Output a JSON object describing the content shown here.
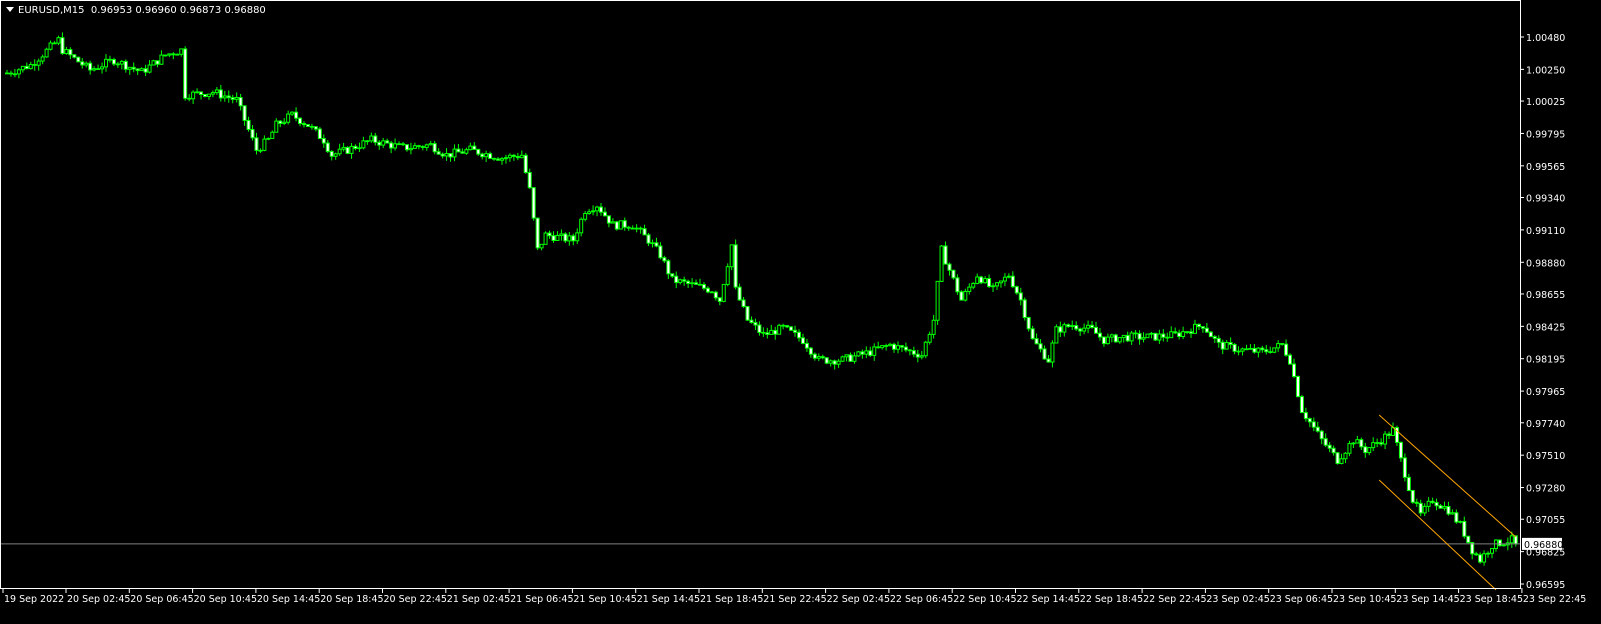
{
  "header": {
    "symbol": "EURUSD,M15",
    "ohlc": "0.96953 0.96960 0.96873 0.96880"
  },
  "colors": {
    "background": "#000000",
    "candle_outline": "#00ff00",
    "bear_body": "#ffffff",
    "bull_body": "#000000",
    "channel": "#ffa500",
    "price_line": "#808080",
    "axis": "#ffffff"
  },
  "chart_data": {
    "type": "candlestick",
    "timeframe": "M15",
    "ylim": [
      0.96595,
      1.0048
    ],
    "y_ticks": [
      "1.00480",
      "1.00250",
      "1.00025",
      "0.99795",
      "0.99565",
      "0.99340",
      "0.99110",
      "0.98880",
      "0.98655",
      "0.98425",
      "0.98195",
      "0.97965",
      "0.97740",
      "0.97510",
      "0.97280",
      "0.97055",
      "0.96825",
      "0.96595"
    ],
    "x_ticks": [
      "19 Sep 2022",
      "20 Sep 02:45",
      "20 Sep 06:45",
      "20 Sep 10:45",
      "20 Sep 14:45",
      "20 Sep 18:45",
      "20 Sep 22:45",
      "21 Sep 02:45",
      "21 Sep 06:45",
      "21 Sep 10:45",
      "21 Sep 14:45",
      "21 Sep 18:45",
      "21 Sep 22:45",
      "22 Sep 02:45",
      "22 Sep 06:45",
      "22 Sep 10:45",
      "22 Sep 14:45",
      "22 Sep 18:45",
      "22 Sep 22:45",
      "23 Sep 02:45",
      "23 Sep 06:45",
      "23 Sep 10:45",
      "23 Sep 14:45",
      "23 Sep 18:45",
      "23 Sep 22:45"
    ],
    "bars_count": 382,
    "close_path": [
      [
        0,
        1.00224
      ],
      [
        6,
        1.00281
      ],
      [
        13,
        1.00459
      ],
      [
        14,
        1.00388
      ],
      [
        21,
        1.00246
      ],
      [
        27,
        1.00317
      ],
      [
        34,
        1.00231
      ],
      [
        40,
        1.00352
      ],
      [
        44,
        1.00388
      ],
      [
        45,
        1.00068
      ],
      [
        52,
        1.00089
      ],
      [
        58,
        1.00033
      ],
      [
        61,
        0.9982
      ],
      [
        63,
        0.99678
      ],
      [
        66,
        0.99749
      ],
      [
        68,
        0.99855
      ],
      [
        72,
        0.99926
      ],
      [
        76,
        0.99855
      ],
      [
        80,
        0.99749
      ],
      [
        82,
        0.99642
      ],
      [
        86,
        0.99678
      ],
      [
        92,
        0.99749
      ],
      [
        100,
        0.99692
      ],
      [
        107,
        0.99713
      ],
      [
        111,
        0.99642
      ],
      [
        117,
        0.99678
      ],
      [
        125,
        0.99621
      ],
      [
        130,
        0.99642
      ],
      [
        132,
        0.99393
      ],
      [
        134,
        0.98967
      ],
      [
        136,
        0.99074
      ],
      [
        143,
        0.99038
      ],
      [
        146,
        0.99251
      ],
      [
        149,
        0.99287
      ],
      [
        153,
        0.99145
      ],
      [
        158,
        0.99145
      ],
      [
        162,
        0.99038
      ],
      [
        165,
        0.98932
      ],
      [
        168,
        0.98754
      ],
      [
        173,
        0.98719
      ],
      [
        178,
        0.98683
      ],
      [
        180,
        0.98612
      ],
      [
        183,
        0.99003
      ],
      [
        184,
        0.98683
      ],
      [
        187,
        0.9847
      ],
      [
        191,
        0.98364
      ],
      [
        196,
        0.98413
      ],
      [
        201,
        0.98328
      ],
      [
        205,
        0.98186
      ],
      [
        211,
        0.98186
      ],
      [
        218,
        0.98243
      ],
      [
        223,
        0.98293
      ],
      [
        227,
        0.98257
      ],
      [
        231,
        0.98222
      ],
      [
        234,
        0.9847
      ],
      [
        236,
        0.98967
      ],
      [
        239,
        0.98754
      ],
      [
        241,
        0.98612
      ],
      [
        245,
        0.9879
      ],
      [
        249,
        0.98683
      ],
      [
        253,
        0.9879
      ],
      [
        256,
        0.98612
      ],
      [
        259,
        0.98328
      ],
      [
        263,
        0.98186
      ],
      [
        265,
        0.98399
      ],
      [
        269,
        0.98435
      ],
      [
        274,
        0.98399
      ],
      [
        277,
        0.98328
      ],
      [
        282,
        0.98349
      ],
      [
        289,
        0.98349
      ],
      [
        295,
        0.98364
      ],
      [
        302,
        0.98435
      ],
      [
        306,
        0.98293
      ],
      [
        312,
        0.98257
      ],
      [
        317,
        0.98243
      ],
      [
        322,
        0.98293
      ],
      [
        324,
        0.98186
      ],
      [
        327,
        0.97831
      ],
      [
        332,
        0.97618
      ],
      [
        336,
        0.97476
      ],
      [
        340,
        0.97618
      ],
      [
        343,
        0.97547
      ],
      [
        347,
        0.97618
      ],
      [
        350,
        0.97689
      ],
      [
        352,
        0.97476
      ],
      [
        355,
        0.97192
      ],
      [
        357,
        0.97085
      ],
      [
        360,
        0.97192
      ],
      [
        364,
        0.97121
      ],
      [
        367,
        0.97014
      ],
      [
        370,
        0.96837
      ],
      [
        372,
        0.96766
      ],
      [
        375,
        0.96872
      ],
      [
        380,
        0.96908
      ],
      [
        381,
        0.9688
      ]
    ],
    "current_price": "0.96880",
    "channel": {
      "upper": [
        [
          346.5,
          0.97795
        ],
        [
          381,
          0.96929
        ]
      ],
      "lower": [
        [
          346.5,
          0.97334
        ],
        [
          376,
          0.96553
        ]
      ]
    }
  }
}
